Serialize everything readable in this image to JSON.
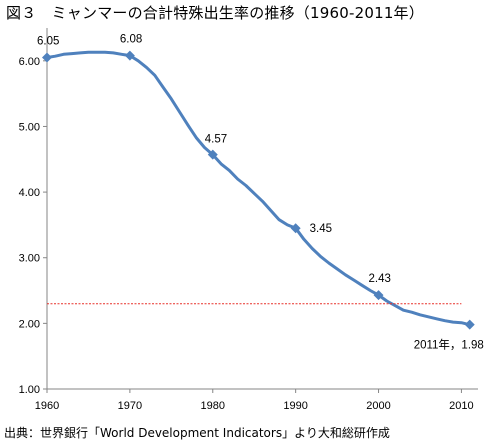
{
  "figure": {
    "title": "図３　ミャンマーの合計特殊出生率の推移（1960-2011年）",
    "source": "出典：世界銀行「World Development Indicators」より大和総研作成"
  },
  "chart_data": {
    "type": "line",
    "title": "図３　ミャンマーの合計特殊出生率の推移（1960-2011年）",
    "xlabel": "",
    "ylabel": "",
    "xlim": [
      1960,
      2012
    ],
    "ylim": [
      1.0,
      6.5
    ],
    "x_ticks": [
      1960,
      1970,
      1980,
      1990,
      2000,
      2010
    ],
    "y_ticks": [
      "1.00",
      "2.00",
      "3.00",
      "4.00",
      "5.00",
      "6.00"
    ],
    "grid": false,
    "legend": "none",
    "series": [
      {
        "color": "#4F81BD",
        "x": [
          1960,
          1961,
          1962,
          1963,
          1964,
          1965,
          1966,
          1967,
          1968,
          1969,
          1970,
          1971,
          1972,
          1973,
          1974,
          1975,
          1976,
          1977,
          1978,
          1979,
          1980,
          1981,
          1982,
          1983,
          1984,
          1985,
          1986,
          1987,
          1988,
          1989,
          1990,
          1991,
          1992,
          1993,
          1994,
          1995,
          1996,
          1997,
          1998,
          1999,
          2000,
          2001,
          2002,
          2003,
          2004,
          2005,
          2006,
          2007,
          2008,
          2009,
          2010,
          2011
        ],
        "y": [
          6.05,
          6.07,
          6.1,
          6.11,
          6.12,
          6.13,
          6.13,
          6.13,
          6.12,
          6.1,
          6.08,
          6.0,
          5.9,
          5.78,
          5.6,
          5.42,
          5.22,
          5.02,
          4.83,
          4.68,
          4.57,
          4.43,
          4.33,
          4.2,
          4.1,
          3.98,
          3.86,
          3.72,
          3.58,
          3.5,
          3.45,
          3.28,
          3.14,
          3.02,
          2.92,
          2.83,
          2.74,
          2.66,
          2.58,
          2.5,
          2.43,
          2.34,
          2.27,
          2.2,
          2.17,
          2.13,
          2.1,
          2.07,
          2.04,
          2.02,
          2.01,
          1.98
        ]
      },
      {
        "color": "#E8302A",
        "style": "dotted",
        "x": [
          1960,
          2010
        ],
        "y": [
          2.3,
          2.3
        ]
      }
    ],
    "markers": [
      {
        "x": 1960,
        "y": 6.05,
        "label": "6.05"
      },
      {
        "x": 1970,
        "y": 6.08,
        "label": "6.08"
      },
      {
        "x": 1980,
        "y": 4.57,
        "label": "4.57"
      },
      {
        "x": 1990,
        "y": 3.45,
        "label": "3.45"
      },
      {
        "x": 2000,
        "y": 2.43,
        "label": "2.43"
      },
      {
        "x": 2011,
        "y": 1.98,
        "label": "2011年，1.98"
      }
    ]
  }
}
